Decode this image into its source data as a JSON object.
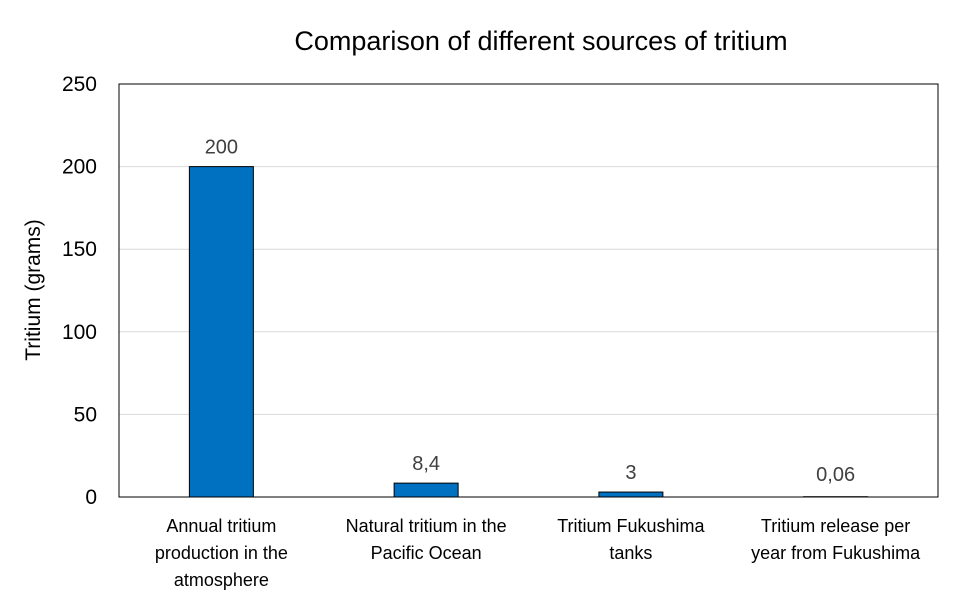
{
  "chart_data": {
    "type": "bar",
    "title": "Comparison of different sources of tritium",
    "xlabel": "",
    "ylabel": "Tritium (grams)",
    "ylim": [
      0,
      250
    ],
    "yticks": [
      0,
      50,
      100,
      150,
      200,
      250
    ],
    "grid": true,
    "legend": "none",
    "bar_color": "#0070C0",
    "categories": [
      [
        "Annual tritium",
        "production in the",
        "atmosphere"
      ],
      [
        "Natural tritium in the",
        "Pacific Ocean"
      ],
      [
        "Tritium Fukushima",
        "tanks"
      ],
      [
        "Tritium release per",
        "year from Fukushima"
      ]
    ],
    "values": [
      200,
      8.4,
      3,
      0.06
    ],
    "data_labels": [
      "200",
      "8,4",
      "3",
      "0,06"
    ]
  }
}
